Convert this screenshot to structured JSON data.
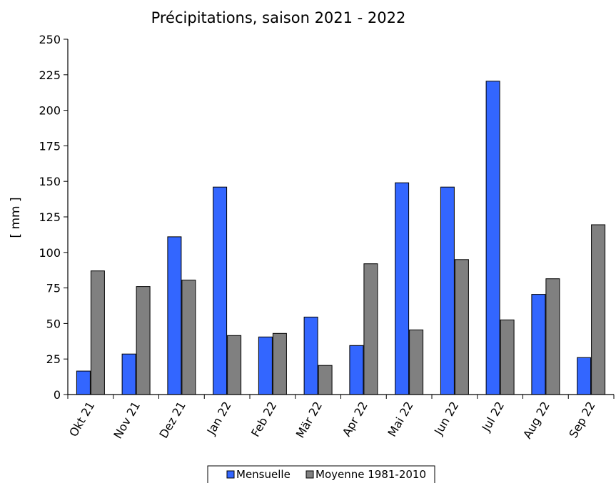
{
  "chart_data": {
    "type": "bar",
    "title": "Précipitations, saison 2021 - 2022",
    "xlabel": "",
    "ylabel": "[ mm ]",
    "ylim": [
      0,
      250
    ],
    "yticks": [
      0,
      25,
      50,
      75,
      100,
      125,
      150,
      175,
      200,
      225,
      250
    ],
    "grid": false,
    "legend_position": "bottom",
    "categories": [
      "Okt 21",
      "Nov 21",
      "Dez 21",
      "Jan 22",
      "Feb 22",
      "Mär 22",
      "Apr 22",
      "Mai 22",
      "Jun 22",
      "Jul 22",
      "Aug 22",
      "Sep 22"
    ],
    "series": [
      {
        "name": "Mensuelle",
        "color": "#3366ff",
        "values": [
          16.5,
          28.5,
          111,
          146,
          40.5,
          54.5,
          34.5,
          149,
          146,
          220.5,
          70.5,
          26
        ]
      },
      {
        "name": "Moyenne 1981-2010",
        "color": "#808080",
        "values": [
          87,
          76,
          80.5,
          41.5,
          43,
          20.5,
          92,
          45.5,
          95,
          52.5,
          81.5,
          119.5
        ]
      }
    ]
  }
}
